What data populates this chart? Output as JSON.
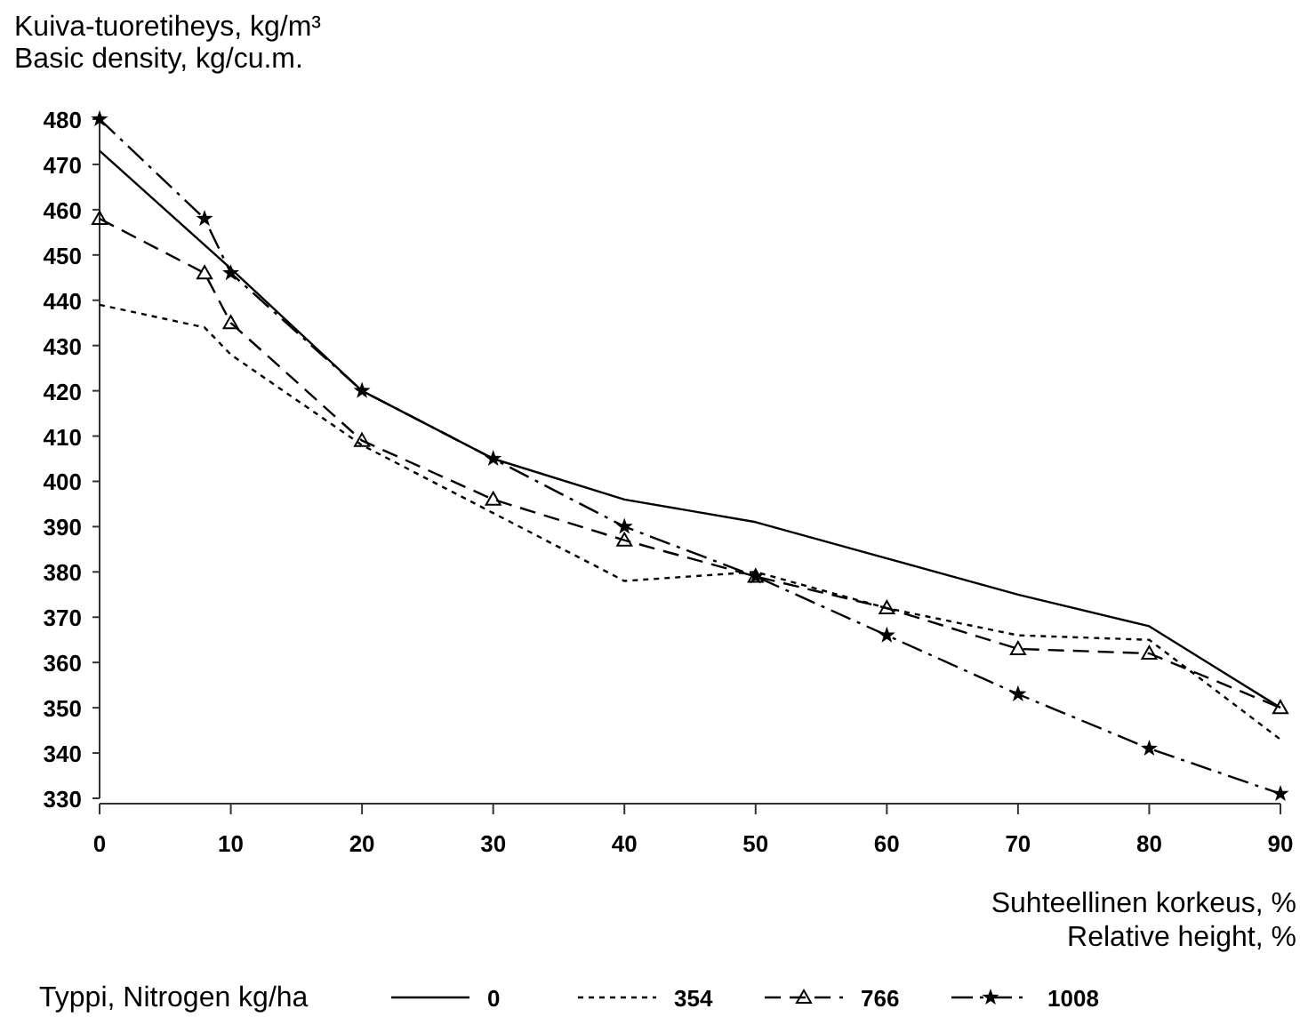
{
  "chart_data": {
    "type": "line",
    "ylabel": "Kuiva-tuoretiheys, kg/m³\nBasic density, kg/cu.m.",
    "xlabel": "Suhteellinen korkeus, %\nRelative height, %",
    "legend_title": "Typpi, Nitrogen kg/ha",
    "legend": "bottom",
    "grid": false,
    "xlim": [
      0,
      90
    ],
    "xticks": [
      0,
      10,
      20,
      30,
      40,
      50,
      60,
      70,
      80,
      90
    ],
    "ylim": [
      330,
      480
    ],
    "yticks": [
      330,
      340,
      350,
      360,
      370,
      380,
      390,
      400,
      410,
      420,
      430,
      440,
      450,
      460,
      470,
      480
    ],
    "series": [
      {
        "name": "0",
        "color": "#000000",
        "line_style": "solid",
        "marker": "none",
        "x": [
          0,
          10,
          20,
          30,
          40,
          50,
          60,
          70,
          80,
          90
        ],
        "values": [
          473,
          447,
          420,
          405,
          396,
          391,
          383,
          375,
          368,
          350
        ]
      },
      {
        "name": "354",
        "color": "#000000",
        "line_style": "dotted",
        "marker": "none",
        "x": [
          0,
          8,
          10,
          20,
          30,
          40,
          50,
          60,
          70,
          80,
          90
        ],
        "values": [
          439,
          434,
          428,
          408,
          393,
          378,
          380,
          372,
          366,
          365,
          343
        ]
      },
      {
        "name": "766",
        "color": "#000000",
        "line_style": "dashed",
        "marker": "triangle",
        "x": [
          0,
          8,
          10,
          20,
          30,
          40,
          50,
          60,
          70,
          80,
          90
        ],
        "values": [
          458,
          446,
          435,
          409,
          396,
          387,
          379,
          372,
          363,
          362,
          350
        ]
      },
      {
        "name": "1008",
        "color": "#000000",
        "line_style": "dashdot",
        "marker": "star",
        "x": [
          0,
          8,
          10,
          20,
          30,
          40,
          50,
          60,
          70,
          80,
          90
        ],
        "values": [
          480,
          458,
          446,
          420,
          405,
          390,
          379,
          366,
          353,
          341,
          331
        ]
      }
    ]
  }
}
